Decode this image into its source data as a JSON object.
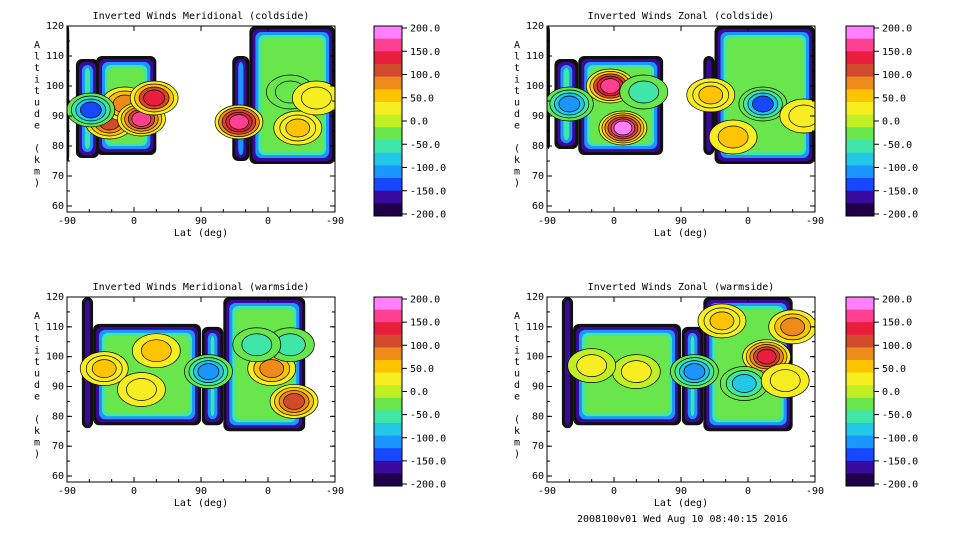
{
  "colorbar": {
    "ticks": [
      "200.0",
      "150.0",
      "100.0",
      "50.0",
      "0.0",
      "-50.0",
      "-100.0",
      "-150.0",
      "-200.0"
    ],
    "range": [
      -200,
      200
    ],
    "colors": [
      "#ff80ff",
      "#ff4090",
      "#e81e3c",
      "#d24a2c",
      "#ee8a1a",
      "#ffc400",
      "#f6ee20",
      "#c0f024",
      "#68e64c",
      "#40e6a8",
      "#22c8e6",
      "#1c96ff",
      "#1648ff",
      "#3a0a9e",
      "#20004a"
    ]
  },
  "footer": "2008100v01 Wed Aug 10 08:40:15 2016",
  "chart_data": [
    {
      "type": "heatmap",
      "title": "Inverted Winds Meridional (coldside)",
      "xlabel": "Lat (deg)",
      "ylabel": "Altitude (km)",
      "xticks": [
        "-90",
        "0",
        "90",
        "0",
        "-90"
      ],
      "yticks": [
        "60",
        "70",
        "80",
        "90",
        "100",
        "110",
        "120"
      ],
      "ylim": [
        58,
        120
      ],
      "value_range": [
        -200,
        200
      ],
      "coverage": [
        [
          -90,
          -87,
          75,
          120
        ],
        [
          -78,
          -47,
          76,
          109
        ],
        [
          -51,
          30,
          77,
          110
        ],
        [
          132,
          155,
          75,
          110
        ],
        [
          155,
          270,
          74,
          120
        ]
      ],
      "features": [
        {
          "lat": -33,
          "alt": 88,
          "value": 110
        },
        {
          "lat": -12,
          "alt": 94,
          "value": 70
        },
        {
          "lat": 10,
          "alt": 89,
          "value": 150
        },
        {
          "lat": 27,
          "alt": 96,
          "value": 130
        },
        {
          "lat": -58,
          "alt": 92,
          "value": -120
        },
        {
          "lat": 141,
          "alt": 88,
          "value": 170
        },
        {
          "lat": 210,
          "alt": 98,
          "value": -30
        },
        {
          "lat": 220,
          "alt": 86,
          "value": 60
        },
        {
          "lat": 245,
          "alt": 96,
          "value": 40
        }
      ]
    },
    {
      "type": "heatmap",
      "title": "Inverted Winds Zonal (coldside)",
      "xlabel": "Lat (deg)",
      "ylabel": "Altitude (km)",
      "xticks": [
        "-90",
        "0",
        "90",
        "0",
        "-90"
      ],
      "yticks": [
        "60",
        "70",
        "80",
        "90",
        "100",
        "110",
        "120"
      ],
      "ylim": [
        58,
        120
      ],
      "value_range": [
        -200,
        200
      ],
      "coverage": [
        [
          -90,
          -86,
          79,
          120
        ],
        [
          -80,
          -48,
          79,
          109
        ],
        [
          -48,
          66,
          77,
          110
        ],
        [
          120,
          135,
          77,
          110
        ],
        [
          135,
          270,
          74,
          120
        ]
      ],
      "features": [
        {
          "lat": -5,
          "alt": 100,
          "value": 160
        },
        {
          "lat": 12,
          "alt": 86,
          "value": 180
        },
        {
          "lat": 40,
          "alt": 98,
          "value": -40
        },
        {
          "lat": -60,
          "alt": 94,
          "value": -110
        },
        {
          "lat": 130,
          "alt": 97,
          "value": 60
        },
        {
          "lat": 200,
          "alt": 94,
          "value": -120
        },
        {
          "lat": 160,
          "alt": 83,
          "value": 50
        },
        {
          "lat": 255,
          "alt": 90,
          "value": 30
        }
      ]
    },
    {
      "type": "heatmap",
      "title": "Inverted Winds Meridional (warmside)",
      "xlabel": "Lat (deg)",
      "ylabel": "Altitude (km)",
      "xticks": [
        "-90",
        "0",
        "90",
        "0",
        "-90"
      ],
      "yticks": [
        "60",
        "70",
        "80",
        "90",
        "100",
        "110",
        "120"
      ],
      "ylim": [
        58,
        120
      ],
      "value_range": [
        -200,
        200
      ],
      "coverage": [
        [
          -70,
          -55,
          76,
          120
        ],
        [
          -55,
          90,
          77,
          111
        ],
        [
          91,
          120,
          77,
          110
        ],
        [
          120,
          230,
          75,
          120
        ]
      ],
      "features": [
        {
          "lat": 30,
          "alt": 102,
          "value": 50
        },
        {
          "lat": -40,
          "alt": 96,
          "value": 60
        },
        {
          "lat": 10,
          "alt": 89,
          "value": 40
        },
        {
          "lat": 185,
          "alt": 96,
          "value": 90
        },
        {
          "lat": 210,
          "alt": 104,
          "value": -50
        },
        {
          "lat": 215,
          "alt": 85,
          "value": 120
        },
        {
          "lat": 100,
          "alt": 95,
          "value": -110
        },
        {
          "lat": 165,
          "alt": 104,
          "value": -40
        }
      ]
    },
    {
      "type": "heatmap",
      "title": "Inverted Winds Zonal (warmside)",
      "xlabel": "Lat (deg)",
      "ylabel": "Altitude (km)",
      "xticks": [
        "-90",
        "0",
        "90",
        "0",
        "-90"
      ],
      "yticks": [
        "60",
        "70",
        "80",
        "90",
        "100",
        "110",
        "120"
      ],
      "ylim": [
        58,
        120
      ],
      "value_range": [
        -200,
        200
      ],
      "coverage": [
        [
          -70,
          -55,
          76,
          120
        ],
        [
          -55,
          90,
          77,
          111
        ],
        [
          91,
          120,
          77,
          110
        ],
        [
          120,
          240,
          75,
          120
        ]
      ],
      "features": [
        {
          "lat": 205,
          "alt": 100,
          "value": 140
        },
        {
          "lat": 145,
          "alt": 112,
          "value": 60
        },
        {
          "lat": 240,
          "alt": 110,
          "value": 70
        },
        {
          "lat": 175,
          "alt": 91,
          "value": -70
        },
        {
          "lat": 108,
          "alt": 95,
          "value": -110
        },
        {
          "lat": 30,
          "alt": 95,
          "value": 15
        },
        {
          "lat": -30,
          "alt": 97,
          "value": 20
        },
        {
          "lat": 230,
          "alt": 92,
          "value": 40
        }
      ]
    }
  ]
}
